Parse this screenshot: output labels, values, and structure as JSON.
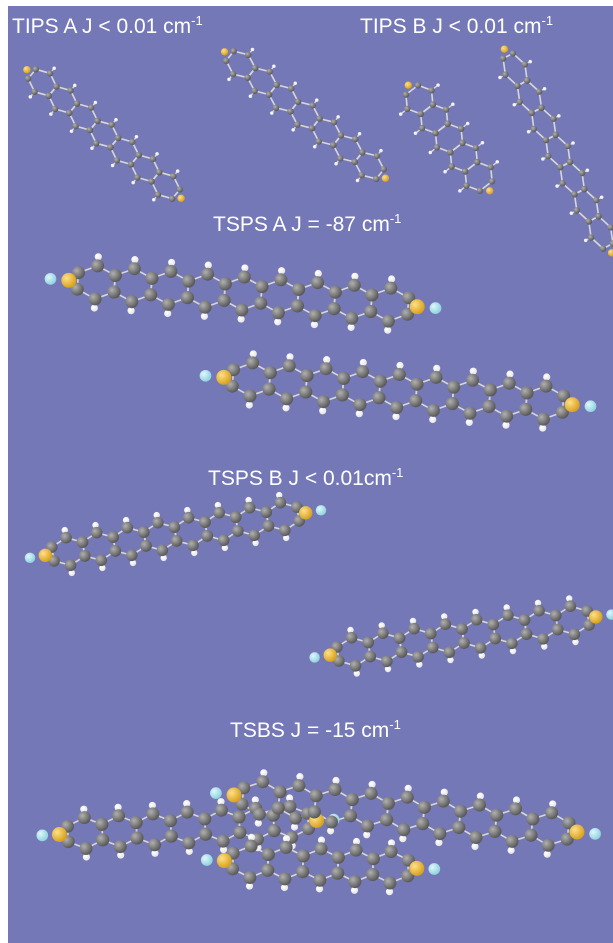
{
  "figure": {
    "colors": {
      "background": "#7578b7",
      "carbon": "#5a5a5a",
      "hydrogen": "#e6e6e6",
      "sulfur": "#d9a21b",
      "fluorine": "#8fd3e0",
      "label": "#ffffff"
    },
    "labels": [
      {
        "id": "tips-a",
        "text": "TIPS A  J < 0.01 cm",
        "sup": "-1"
      },
      {
        "id": "tips-b",
        "text": "TIPS B  J < 0.01 cm",
        "sup": "-1"
      },
      {
        "id": "tsps-a",
        "text": "TSPS A   J = -87 cm",
        "sup": "-1"
      },
      {
        "id": "tsps-b",
        "text": "TSPS B   J < 0.01cm",
        "sup": "-1"
      },
      {
        "id": "tsbs",
        "text": "TSBS J = -15 cm",
        "sup": "-1"
      }
    ]
  }
}
